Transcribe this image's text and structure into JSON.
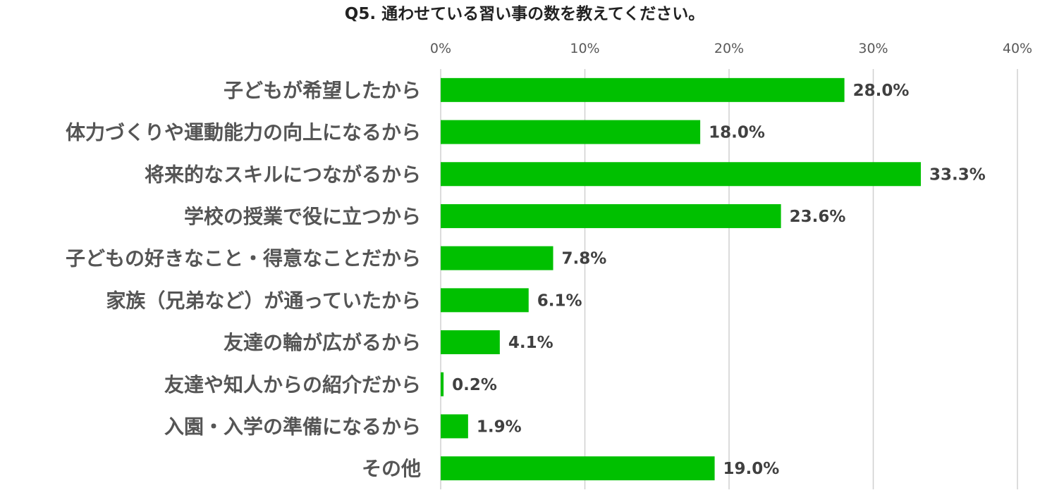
{
  "chart_data": {
    "type": "bar",
    "orientation": "horizontal",
    "title": "Q5. 通わせている習い事の数を教えてください。",
    "xlim": [
      0,
      40
    ],
    "x_ticks": [
      0,
      10,
      20,
      30,
      40
    ],
    "x_tick_labels": [
      "0%",
      "10%",
      "20%",
      "30%",
      "40%"
    ],
    "x_axis_position": "top",
    "grid": true,
    "legend": "none",
    "bar_color": "#00C000",
    "categories": [
      "子どもが希望したから",
      "体力づくりや運動能力の向上になるから",
      "将来的なスキルにつながるから",
      "学校の授業で役に立つから",
      "子どもの好きなこと・得意なことだから",
      "家族（兄弟など）が通っていたから",
      "友達の輪が広がるから",
      "友達や知人からの紹介だから",
      "入園・入学の準備になるから",
      "その他"
    ],
    "values": [
      28.0,
      18.0,
      33.3,
      23.6,
      7.8,
      6.1,
      4.1,
      0.2,
      1.9,
      19.0
    ],
    "value_labels": [
      "28.0%",
      "18.0%",
      "33.3%",
      "23.6%",
      "7.8%",
      "6.1%",
      "4.1%",
      "0.2%",
      "1.9%",
      "19.0%"
    ]
  }
}
